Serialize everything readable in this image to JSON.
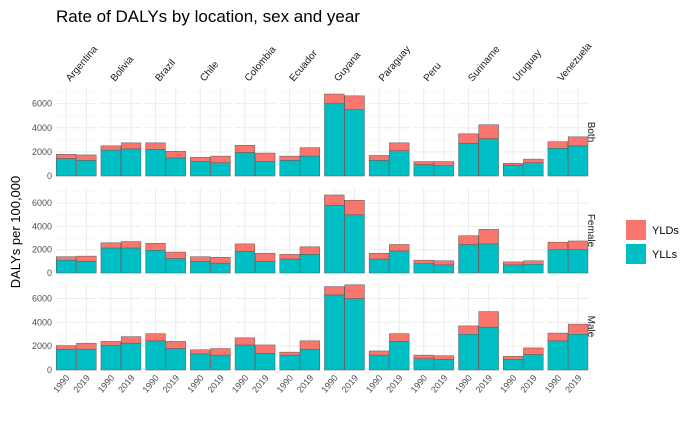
{
  "chart_data": {
    "type": "bar",
    "stacked": true,
    "title": "Rate of DALYs by location, sex and year",
    "ylabel": "DALYs per 100,000",
    "xlabel": "",
    "locations": [
      "Argentina",
      "Bolivia",
      "Brazil",
      "Chile",
      "Colombia",
      "Ecuador",
      "Guyana",
      "Paraguay",
      "Peru",
      "Suriname",
      "Uruguay",
      "Venezuela"
    ],
    "years": [
      "1990",
      "2019"
    ],
    "sexes": [
      "Both",
      "Female",
      "Male"
    ],
    "ylim": [
      0,
      7300
    ],
    "yticks": [
      0,
      2000,
      4000,
      6000
    ],
    "grid": true,
    "legend_position": "right",
    "legend": [
      {
        "name": "YLDs",
        "color": "#F8766D"
      },
      {
        "name": "YLLs",
        "color": "#00BFC4"
      }
    ],
    "series_order": [
      "YLLs",
      "YLDs"
    ],
    "data": {
      "Both": {
        "Argentina": {
          "1990": {
            "YLLs": 1450,
            "YLDs": 350
          },
          "2019": {
            "YLLs": 1300,
            "YLDs": 450
          }
        },
        "Bolivia": {
          "1990": {
            "YLLs": 2150,
            "YLDs": 350
          },
          "2019": {
            "YLLs": 2250,
            "YLDs": 500
          }
        },
        "Brazil": {
          "1990": {
            "YLLs": 2200,
            "YLDs": 550
          },
          "2019": {
            "YLLs": 1500,
            "YLDs": 550
          }
        },
        "Chile": {
          "1990": {
            "YLLs": 1200,
            "YLDs": 350
          },
          "2019": {
            "YLLs": 1100,
            "YLDs": 550
          }
        },
        "Colombia": {
          "1990": {
            "YLLs": 1950,
            "YLDs": 600
          },
          "2019": {
            "YLLs": 1200,
            "YLDs": 700
          }
        },
        "Ecuador": {
          "1990": {
            "YLLs": 1300,
            "YLDs": 350
          },
          "2019": {
            "YLLs": 1650,
            "YLDs": 700
          }
        },
        "Guyana": {
          "1990": {
            "YLLs": 6000,
            "YLDs": 800
          },
          "2019": {
            "YLLs": 5500,
            "YLDs": 1150
          }
        },
        "Paraguay": {
          "1990": {
            "YLLs": 1300,
            "YLDs": 400
          },
          "2019": {
            "YLLs": 2100,
            "YLDs": 650
          }
        },
        "Peru": {
          "1990": {
            "YLLs": 950,
            "YLDs": 250
          },
          "2019": {
            "YLLs": 850,
            "YLDs": 350
          }
        },
        "Suriname": {
          "1990": {
            "YLLs": 2700,
            "YLDs": 800
          },
          "2019": {
            "YLLs": 3100,
            "YLDs": 1150
          }
        },
        "Uruguay": {
          "1990": {
            "YLLs": 900,
            "YLDs": 150
          },
          "2019": {
            "YLLs": 1100,
            "YLDs": 300
          }
        },
        "Venezuela": {
          "1990": {
            "YLLs": 2300,
            "YLDs": 550
          },
          "2019": {
            "YLLs": 2500,
            "YLDs": 750
          }
        }
      },
      "Female": {
        "Argentina": {
          "1990": {
            "YLLs": 1100,
            "YLDs": 300
          },
          "2019": {
            "YLLs": 1000,
            "YLDs": 450
          }
        },
        "Bolivia": {
          "1990": {
            "YLLs": 2150,
            "YLDs": 450
          },
          "2019": {
            "YLLs": 2150,
            "YLDs": 550
          }
        },
        "Brazil": {
          "1990": {
            "YLLs": 1950,
            "YLDs": 600
          },
          "2019": {
            "YLLs": 1250,
            "YLDs": 550
          }
        },
        "Chile": {
          "1990": {
            "YLLs": 1000,
            "YLDs": 400
          },
          "2019": {
            "YLLs": 850,
            "YLDs": 500
          }
        },
        "Colombia": {
          "1990": {
            "YLLs": 1850,
            "YLDs": 650
          },
          "2019": {
            "YLLs": 1000,
            "YLDs": 700
          }
        },
        "Ecuador": {
          "1990": {
            "YLLs": 1200,
            "YLDs": 400
          },
          "2019": {
            "YLLs": 1600,
            "YLDs": 650
          }
        },
        "Guyana": {
          "1990": {
            "YLLs": 5800,
            "YLDs": 900
          },
          "2019": {
            "YLLs": 5000,
            "YLDs": 1250
          }
        },
        "Paraguay": {
          "1990": {
            "YLLs": 1200,
            "YLDs": 500
          },
          "2019": {
            "YLLs": 1900,
            "YLDs": 550
          }
        },
        "Peru": {
          "1990": {
            "YLLs": 800,
            "YLDs": 300
          },
          "2019": {
            "YLLs": 700,
            "YLDs": 350
          }
        },
        "Suriname": {
          "1990": {
            "YLLs": 2450,
            "YLDs": 750
          },
          "2019": {
            "YLLs": 2500,
            "YLDs": 1250
          }
        },
        "Uruguay": {
          "1990": {
            "YLLs": 700,
            "YLDs": 250
          },
          "2019": {
            "YLLs": 750,
            "YLDs": 300
          }
        },
        "Venezuela": {
          "1990": {
            "YLLs": 2000,
            "YLDs": 650
          },
          "2019": {
            "YLLs": 2000,
            "YLDs": 750
          }
        }
      },
      "Male": {
        "Argentina": {
          "1990": {
            "YLLs": 1750,
            "YLDs": 300
          },
          "2019": {
            "YLLs": 1750,
            "YLDs": 500
          }
        },
        "Bolivia": {
          "1990": {
            "YLLs": 2050,
            "YLDs": 350
          },
          "2019": {
            "YLLs": 2250,
            "YLDs": 550
          }
        },
        "Brazil": {
          "1990": {
            "YLLs": 2450,
            "YLDs": 600
          },
          "2019": {
            "YLLs": 1800,
            "YLDs": 600
          }
        },
        "Chile": {
          "1990": {
            "YLLs": 1350,
            "YLDs": 350
          },
          "2019": {
            "YLLs": 1250,
            "YLDs": 550
          }
        },
        "Colombia": {
          "1990": {
            "YLLs": 2100,
            "YLDs": 600
          },
          "2019": {
            "YLLs": 1400,
            "YLDs": 700
          }
        },
        "Ecuador": {
          "1990": {
            "YLLs": 1250,
            "YLDs": 250
          },
          "2019": {
            "YLLs": 1750,
            "YLDs": 700
          }
        },
        "Guyana": {
          "1990": {
            "YLLs": 6300,
            "YLDs": 700
          },
          "2019": {
            "YLLs": 6000,
            "YLDs": 1150
          }
        },
        "Paraguay": {
          "1990": {
            "YLLs": 1250,
            "YLDs": 350
          },
          "2019": {
            "YLLs": 2400,
            "YLDs": 650
          }
        },
        "Peru": {
          "1990": {
            "YLLs": 950,
            "YLDs": 300
          },
          "2019": {
            "YLLs": 900,
            "YLDs": 300
          }
        },
        "Suriname": {
          "1990": {
            "YLLs": 3000,
            "YLDs": 700
          },
          "2019": {
            "YLLs": 3600,
            "YLDs": 1300
          }
        },
        "Uruguay": {
          "1990": {
            "YLLs": 900,
            "YLDs": 250
          },
          "2019": {
            "YLLs": 1300,
            "YLDs": 550
          }
        },
        "Venezuela": {
          "1990": {
            "YLLs": 2450,
            "YLDs": 650
          },
          "2019": {
            "YLLs": 3000,
            "YLDs": 850
          }
        }
      }
    }
  }
}
